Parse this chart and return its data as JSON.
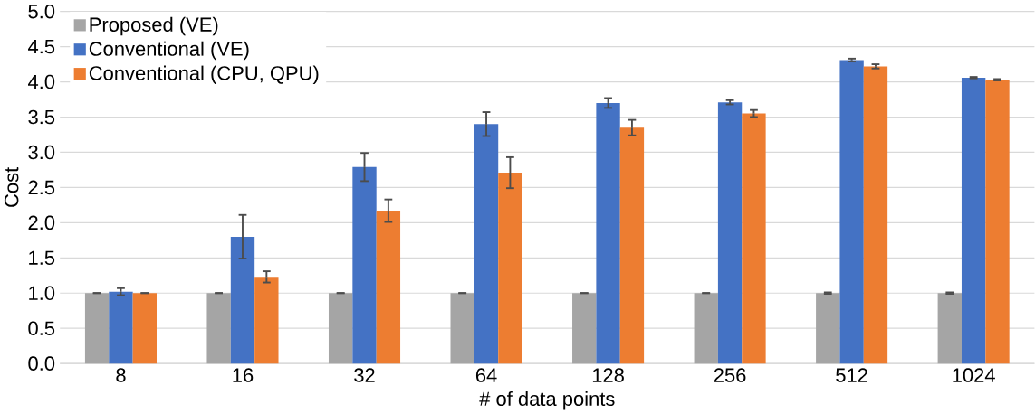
{
  "chart_data": {
    "type": "bar",
    "xlabel": "# of data points",
    "ylabel": "Cost",
    "categories": [
      "8",
      "16",
      "32",
      "64",
      "128",
      "256",
      "512",
      "1024"
    ],
    "series": [
      {
        "name": "Proposed (VE)",
        "color": "#a5a5a5",
        "values": [
          1.0,
          1.0,
          1.0,
          1.0,
          1.0,
          1.0,
          1.0,
          1.0
        ],
        "errors": [
          0,
          0,
          0,
          0,
          0,
          0,
          0.01,
          0.01
        ]
      },
      {
        "name": "Conventional (VE)",
        "color": "#4472c4",
        "values": [
          1.02,
          1.8,
          2.79,
          3.4,
          3.7,
          3.71,
          4.31,
          4.06
        ],
        "errors": [
          0.05,
          0.31,
          0.2,
          0.17,
          0.07,
          0.03,
          0.02,
          0.01
        ]
      },
      {
        "name": "Conventional (CPU, QPU)",
        "color": "#ed7d31",
        "values": [
          1.0,
          1.23,
          2.17,
          2.71,
          3.35,
          3.55,
          4.22,
          4.03
        ],
        "errors": [
          0,
          0.08,
          0.16,
          0.22,
          0.11,
          0.05,
          0.03,
          0.01
        ]
      }
    ],
    "ylim": [
      0,
      5
    ],
    "yticks": [
      {
        "value": 0,
        "label": "0.0"
      },
      {
        "value": 0.5,
        "label": "0.5"
      },
      {
        "value": 1,
        "label": "1.0"
      },
      {
        "value": 1.5,
        "label": "1.5"
      },
      {
        "value": 2,
        "label": "2.0"
      },
      {
        "value": 2.5,
        "label": "2.5"
      },
      {
        "value": 3,
        "label": "3.0"
      },
      {
        "value": 3.5,
        "label": "3.5"
      },
      {
        "value": 4,
        "label": "4.0"
      },
      {
        "value": 4.5,
        "label": "4.5"
      },
      {
        "value": 5,
        "label": "5.0"
      }
    ],
    "grid": "y",
    "legend": "top left"
  }
}
